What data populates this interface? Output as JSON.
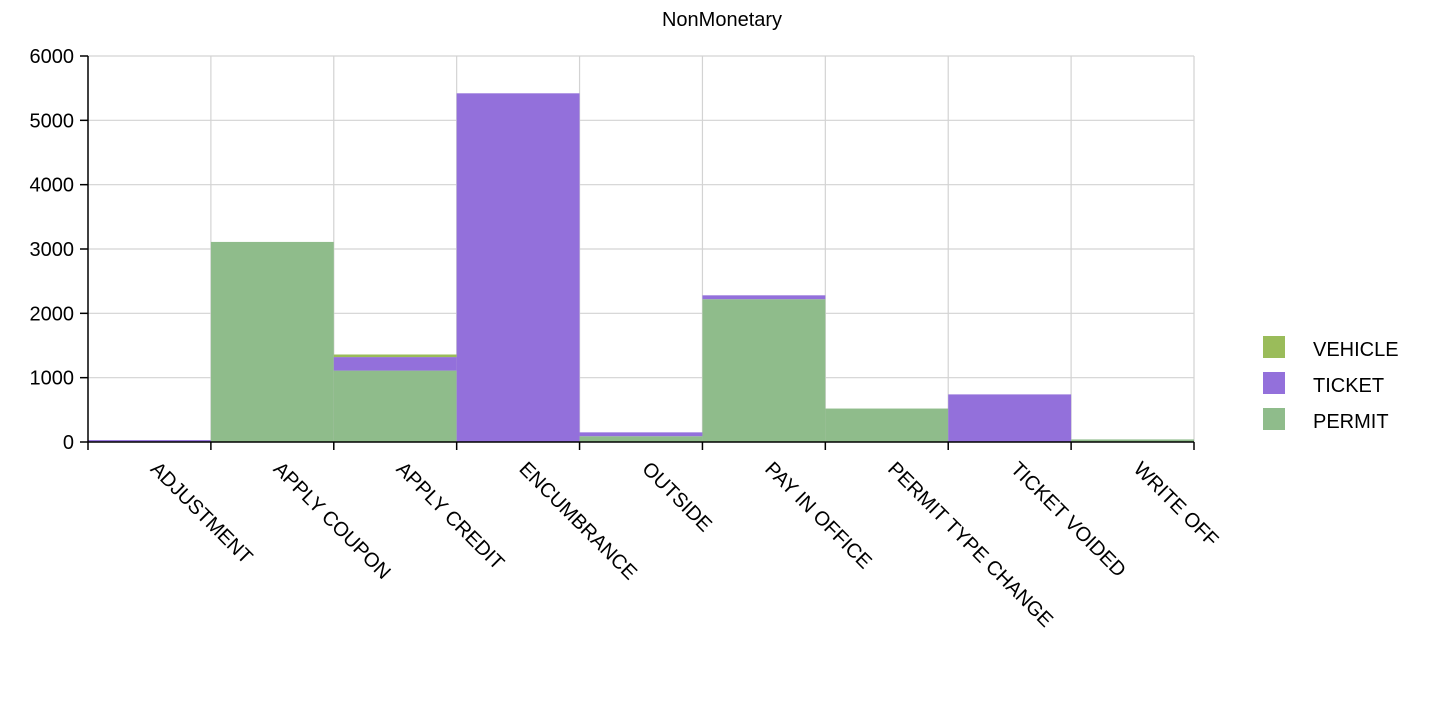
{
  "chart_data": {
    "type": "bar",
    "stacked": true,
    "title": "NonMonetary",
    "xlabel": "",
    "ylabel": "",
    "categories": [
      "ADJUSTMENT",
      "APPLY COUPON",
      "APPLY CREDIT",
      "ENCUMBRANCE",
      "OUTSIDE",
      "PAY IN OFFICE",
      "PERMIT TYPE CHANGE",
      "TICKET VOIDED",
      "WRITE OFF"
    ],
    "series": [
      {
        "name": "PERMIT",
        "color": "#8fbc8b",
        "values": [
          0,
          3110,
          1110,
          0,
          90,
          2220,
          520,
          0,
          40
        ]
      },
      {
        "name": "TICKET",
        "color": "#9370db",
        "values": [
          30,
          0,
          210,
          5420,
          60,
          60,
          0,
          740,
          0
        ]
      },
      {
        "name": "VEHICLE",
        "color": "#9abc5a",
        "values": [
          0,
          0,
          40,
          0,
          0,
          0,
          0,
          0,
          0
        ]
      }
    ],
    "ylim": [
      0,
      6000
    ],
    "yticks": [
      0,
      1000,
      2000,
      3000,
      4000,
      5000,
      6000
    ],
    "grid": true,
    "legend_position": "right",
    "legend_order": [
      "VEHICLE",
      "TICKET",
      "PERMIT"
    ],
    "x_tick_rotation": 45,
    "gridline_color": "#d3d3d3"
  }
}
